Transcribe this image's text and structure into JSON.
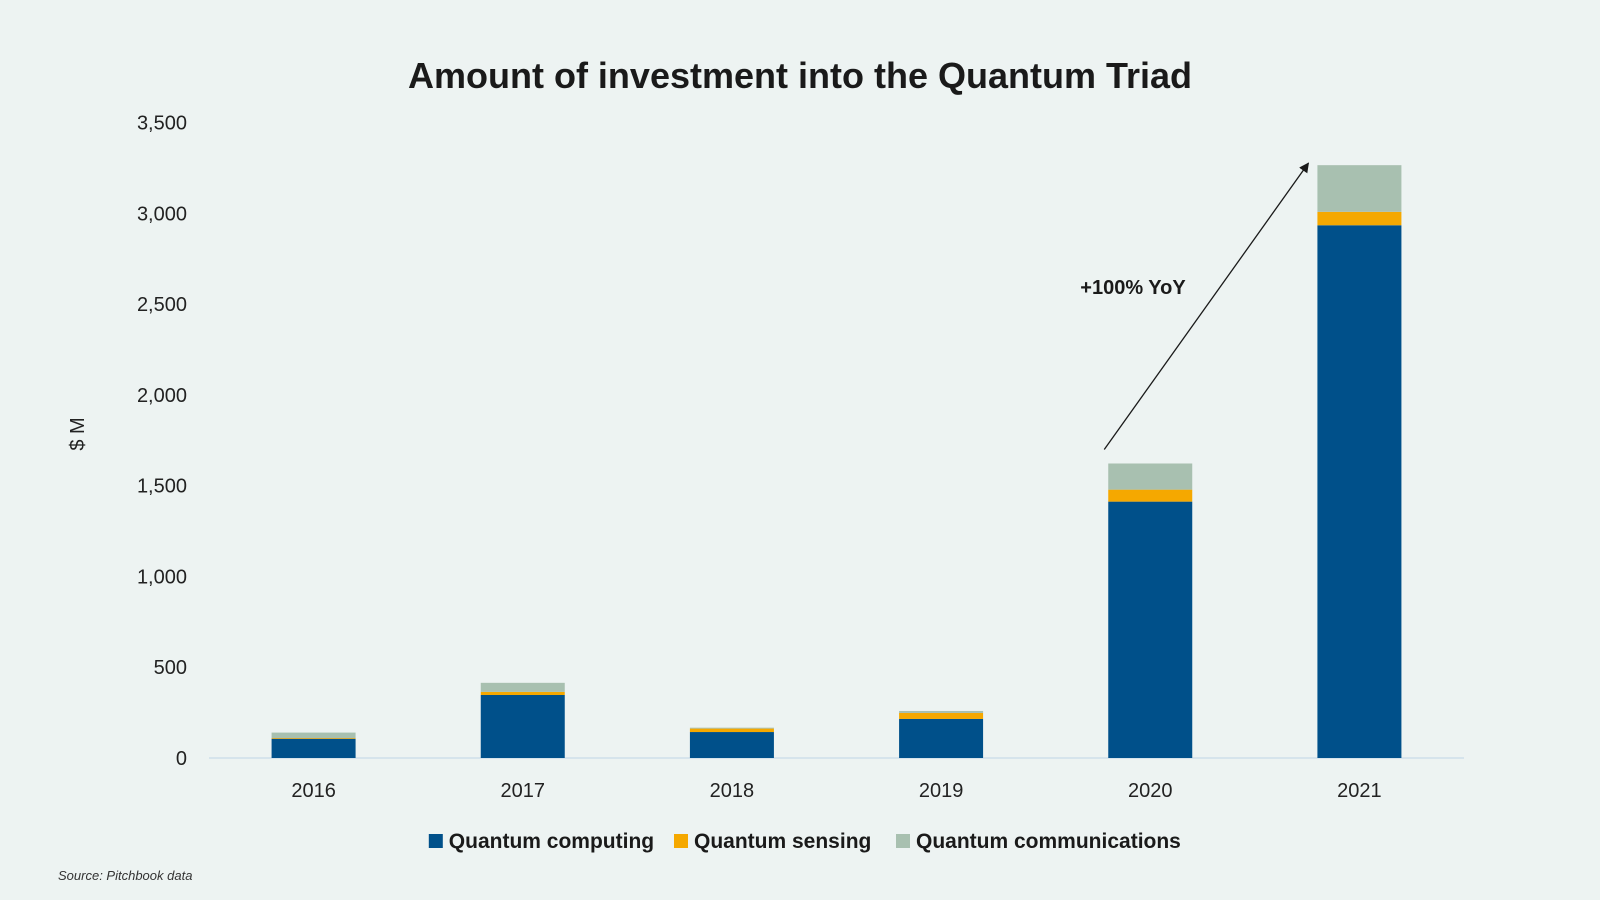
{
  "chart_data": {
    "type": "bar",
    "stacked": true,
    "title": "Amount of investment into the Quantum Triad",
    "xlabel": "",
    "ylabel": "$ M",
    "ylim": [
      0,
      3500
    ],
    "yticks": [
      0,
      500,
      1000,
      1500,
      2000,
      2500,
      3000,
      3500
    ],
    "ytick_labels": [
      "0",
      "500",
      "1,000",
      "1,500",
      "2,000",
      "2,500",
      "3,000",
      "3,500"
    ],
    "categories": [
      "2016",
      "2017",
      "2018",
      "2019",
      "2020",
      "2021"
    ],
    "series": [
      {
        "name": "Quantum computing",
        "color": "#00508a",
        "values": [
          106,
          347,
          143,
          215,
          1412,
          2934
        ]
      },
      {
        "name": "Quantum sensing",
        "color": "#f5a800",
        "values": [
          4,
          17,
          19,
          33,
          66,
          74
        ]
      },
      {
        "name": "Quantum communications",
        "color": "#a8c0b0",
        "values": [
          30,
          50,
          5,
          11,
          144,
          257
        ]
      }
    ],
    "grid": false,
    "legend_position": "bottom",
    "annotation": {
      "text": "+100% YoY",
      "from_category": "2020",
      "to_category": "2021"
    },
    "source": "Source: Pitchbook data"
  }
}
